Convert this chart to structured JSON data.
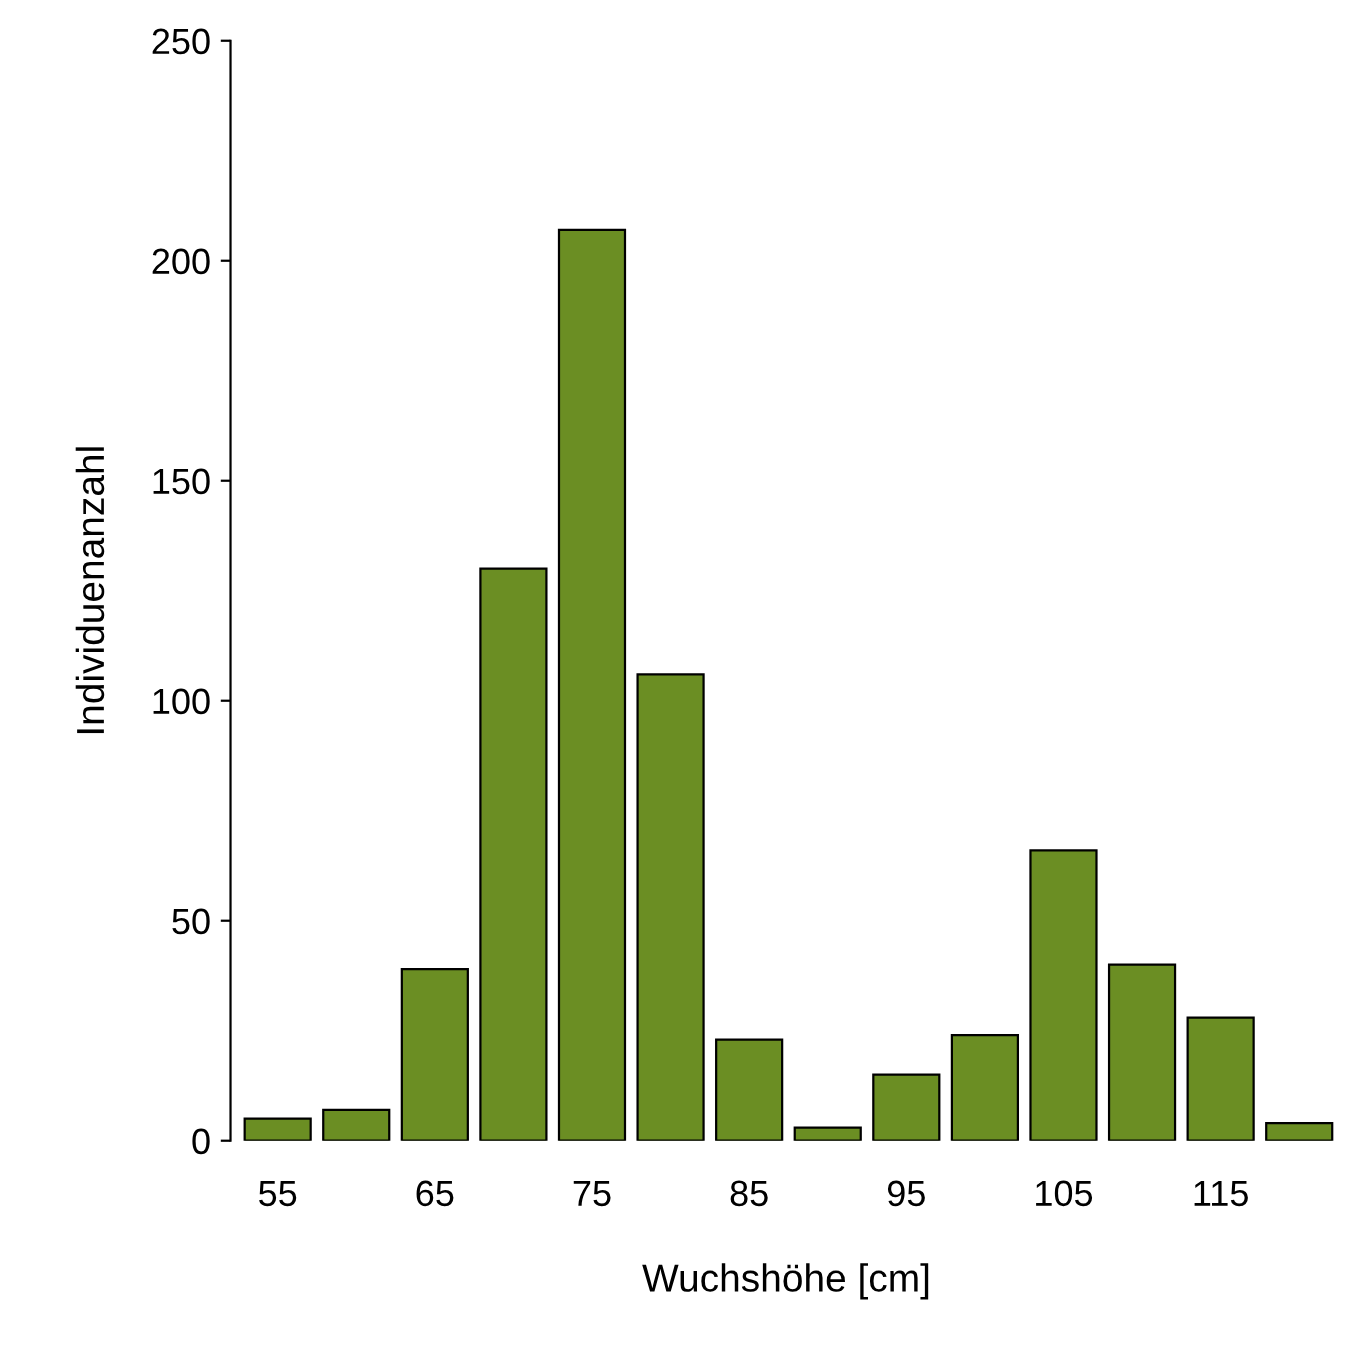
{
  "chart_data": {
    "type": "bar",
    "xlabel": "Wuchshöhe [cm]",
    "ylabel": "Individuenanzahl",
    "categories": [
      "55",
      null,
      "65",
      null,
      "75",
      null,
      "85",
      null,
      "95",
      null,
      "105",
      null,
      "115",
      null
    ],
    "values": [
      5,
      7,
      39,
      130,
      207,
      106,
      23,
      3,
      15,
      24,
      66,
      40,
      28,
      4
    ],
    "color": "#6b8e23",
    "ylim": [
      0,
      250
    ],
    "yticks": [
      0,
      50,
      100,
      150,
      200,
      250
    ],
    "grid": false
  }
}
